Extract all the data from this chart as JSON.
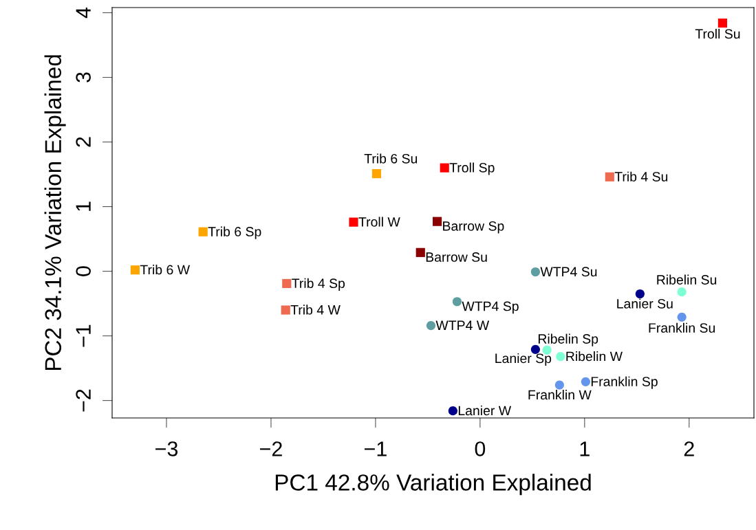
{
  "chart_data": {
    "type": "scatter",
    "xlabel": "PC1 42.8% Variation Explained",
    "ylabel": "PC2 34.1% Variation Explained",
    "xlim": [
      -3.52,
      2.62
    ],
    "ylim": [
      -2.27,
      4.08
    ],
    "xticks": [
      -3,
      -2,
      -1,
      0,
      1,
      2
    ],
    "yticks": [
      -2,
      -1,
      0,
      1,
      2,
      3,
      4
    ],
    "grid": false,
    "legend": false,
    "series": [
      {
        "color": "#ff0000",
        "marker": "square",
        "x": [
          -1.21,
          -0.34,
          2.32
        ],
        "values": [
          0.76,
          1.6,
          3.84
        ]
      },
      {
        "color": "#ffa500",
        "marker": "square",
        "x": [
          -3.3,
          -2.65,
          -0.99
        ],
        "values": [
          0.02,
          0.61,
          1.51
        ]
      },
      {
        "color": "#ee6a50",
        "marker": "square",
        "x": [
          -1.86,
          -1.85,
          1.24
        ],
        "values": [
          -0.6,
          -0.19,
          1.46
        ]
      },
      {
        "color": "#8b0000",
        "marker": "square",
        "x": [
          -0.41,
          -0.57
        ],
        "values": [
          0.77,
          0.29
        ]
      },
      {
        "color": "#5f9ea0",
        "marker": "circle",
        "x": [
          -0.47,
          -0.22,
          0.53
        ],
        "values": [
          -0.84,
          -0.47,
          -0.01
        ]
      },
      {
        "color": "#00008b",
        "marker": "circle",
        "x": [
          -0.26,
          0.53,
          1.53
        ],
        "values": [
          -2.16,
          -1.21,
          -0.35
        ]
      },
      {
        "color": "#7fffd4",
        "marker": "circle",
        "x": [
          0.77,
          0.64,
          1.93
        ],
        "values": [
          -1.32,
          -1.22,
          -0.32
        ]
      },
      {
        "color": "#6495ed",
        "marker": "circle",
        "x": [
          0.76,
          1.01,
          1.93
        ],
        "values": [
          -1.76,
          -1.71,
          -0.71
        ]
      }
    ],
    "annotations": [
      {
        "text": "Troll W",
        "x": -1.21,
        "y": 0.76
      },
      {
        "text": "Troll Sp",
        "x": -0.34,
        "y": 1.6
      },
      {
        "text": "Troll Su",
        "x": 2.32,
        "y": 3.84
      },
      {
        "text": "Trib 6 W",
        "x": -3.3,
        "y": 0.02
      },
      {
        "text": "Trib 6 Sp",
        "x": -2.65,
        "y": 0.61
      },
      {
        "text": "Trib 6 Su",
        "x": -0.99,
        "y": 1.51
      },
      {
        "text": "Trib 4 W",
        "x": -1.86,
        "y": -0.6
      },
      {
        "text": "Trib 4 Sp",
        "x": -1.85,
        "y": -0.19
      },
      {
        "text": "Trib 4 Su",
        "x": 1.24,
        "y": 1.46
      },
      {
        "text": "Barrow Sp",
        "x": -0.41,
        "y": 0.77
      },
      {
        "text": "Barrow Su",
        "x": -0.57,
        "y": 0.29
      },
      {
        "text": "WTP4 W",
        "x": -0.47,
        "y": -0.84
      },
      {
        "text": "WTP4 Sp",
        "x": -0.22,
        "y": -0.47
      },
      {
        "text": "WTP4 Su",
        "x": 0.53,
        "y": -0.01
      },
      {
        "text": "Lanier W",
        "x": -0.26,
        "y": -2.16
      },
      {
        "text": "Lanier Sp",
        "x": 0.53,
        "y": -1.21
      },
      {
        "text": "Lanier Su",
        "x": 1.53,
        "y": -0.35
      },
      {
        "text": "Ribelin W",
        "x": 0.77,
        "y": -1.32
      },
      {
        "text": "Ribelin Sp",
        "x": 0.64,
        "y": -1.22
      },
      {
        "text": "Ribelin Su",
        "x": 1.93,
        "y": -0.32
      },
      {
        "text": "Franklin W",
        "x": 0.76,
        "y": -1.76
      },
      {
        "text": "Franklin Sp",
        "x": 1.01,
        "y": -1.71
      },
      {
        "text": "Franklin Su",
        "x": 1.93,
        "y": -0.71
      }
    ]
  }
}
